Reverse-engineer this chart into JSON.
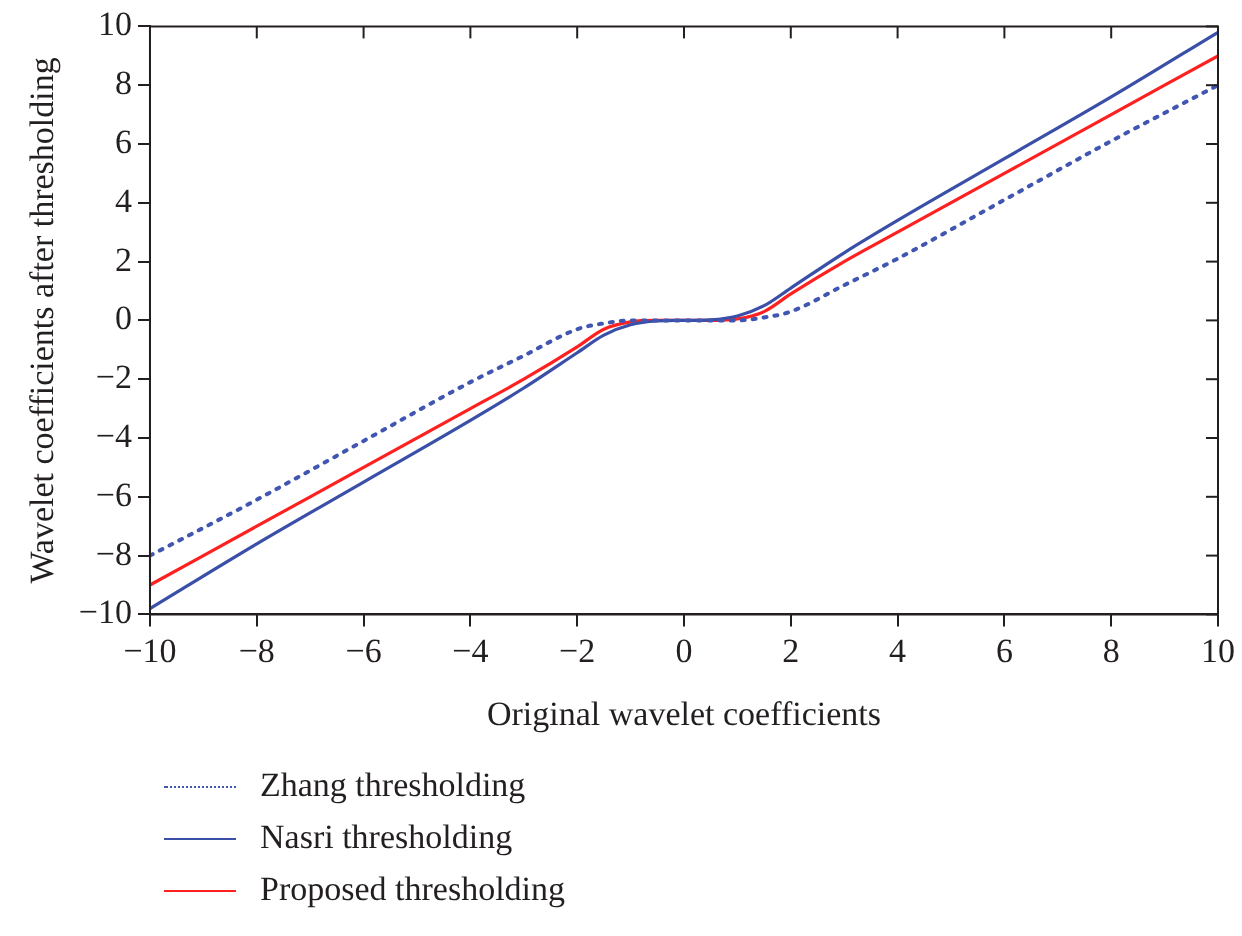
{
  "chart_data": {
    "type": "line",
    "xlabel": "Original wavelet coefficients",
    "ylabel": "Wavelet coefficients after thresholding",
    "x": [
      -10,
      -8,
      -6,
      -4,
      -3,
      -2,
      -1.5,
      -1,
      -0.5,
      0,
      0.5,
      1,
      1.5,
      2,
      3,
      4,
      6,
      8,
      10
    ],
    "series": [
      {
        "name": "Zhang thresholding",
        "color": "#4056b0",
        "line_style": "dotted",
        "values": [
          -8,
          -6.1,
          -4.1,
          -2.1,
          -1.2,
          -0.3,
          -0.1,
          0,
          0,
          0,
          0,
          0,
          0.1,
          0.3,
          1.2,
          2.1,
          4.1,
          6.1,
          8
        ]
      },
      {
        "name": "Nasri thresholding",
        "color": "#3a4fa8",
        "values": [
          -9.8,
          -7.6,
          -5.5,
          -3.4,
          -2.3,
          -1.1,
          -0.5,
          -0.15,
          -0.02,
          0,
          0.02,
          0.15,
          0.5,
          1.1,
          2.3,
          3.4,
          5.5,
          7.6,
          9.8
        ]
      },
      {
        "name": "Proposed thresholding",
        "color": "#ff2020",
        "values": [
          -9,
          -7,
          -5,
          -3,
          -2,
          -0.9,
          -0.3,
          -0.05,
          0,
          0,
          0,
          0.05,
          0.3,
          0.9,
          2,
          3,
          5,
          7,
          9
        ]
      }
    ],
    "xlim": [
      -10,
      10
    ],
    "xticks": [
      -10,
      -8,
      -6,
      -4,
      -2,
      0,
      2,
      4,
      6,
      8,
      10
    ],
    "ylim": [
      -10,
      10
    ],
    "yticks": [
      -10,
      -8,
      -6,
      -4,
      -2,
      0,
      2,
      4,
      6,
      8,
      10
    ],
    "grid": false,
    "legend": "bottom",
    "marker": "none",
    "line_style": "solid"
  }
}
